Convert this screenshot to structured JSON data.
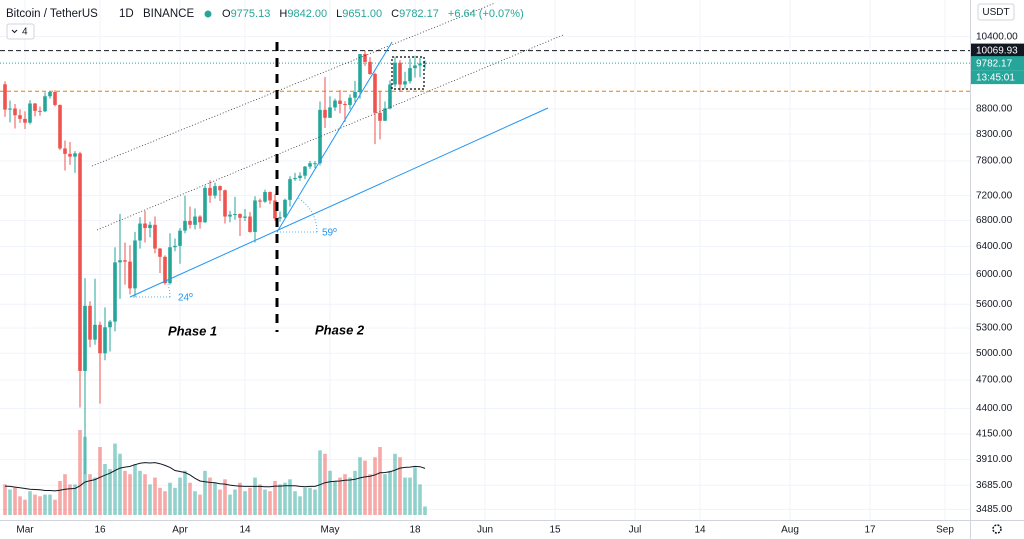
{
  "header": {
    "symbol": "Bitcoin / TetherUS",
    "interval": "1D",
    "exchange": "BINANCE",
    "ohlc": [
      {
        "key": "O",
        "value": "9775.13"
      },
      {
        "key": "H",
        "value": "9842.00"
      },
      {
        "key": "L",
        "value": "9651.00"
      },
      {
        "key": "C",
        "value": "9782.17"
      }
    ],
    "change": "+6.64 (+0.07%)",
    "indicator_count": 4,
    "currency": "USDT"
  },
  "annotations": {
    "phase_1": "Phase 1",
    "phase_2": "Phase 2",
    "angle_1": "24º",
    "angle_2": "59º"
  },
  "chart_data": {
    "type": "candlestick",
    "log_scale": true,
    "grid": true,
    "up_color": "#26a69a",
    "down_color": "#ef5350",
    "xlim": [
      "Feb 25",
      "Sep 6"
    ],
    "ylim": [
      3400,
      11320
    ],
    "xticks": [
      {
        "value": "Mar 1",
        "label": "Mar"
      },
      {
        "value": "Mar 16",
        "label": "16"
      },
      {
        "value": "Apr 1",
        "label": "Apr"
      },
      {
        "value": "Apr 14",
        "label": "14"
      },
      {
        "value": "May 1",
        "label": "May"
      },
      {
        "value": "May 18",
        "label": "18"
      },
      {
        "value": "Jun 1",
        "label": "Jun"
      },
      {
        "value": "Jun 15",
        "label": "15"
      },
      {
        "value": "Jul 1",
        "label": "Jul"
      },
      {
        "value": "Jul 14",
        "label": "14"
      },
      {
        "value": "Aug 1",
        "label": "Aug"
      },
      {
        "value": "Aug 17",
        "label": "17"
      },
      {
        "value": "Sep 1",
        "label": "Sep"
      }
    ],
    "yticks": [
      {
        "value": 10400,
        "label": "10400.00"
      },
      {
        "value": 8800,
        "label": "8800.00"
      },
      {
        "value": 8300,
        "label": "8300.00"
      },
      {
        "value": 7800,
        "label": "7800.00"
      },
      {
        "value": 7200,
        "label": "7200.00"
      },
      {
        "value": 6800,
        "label": "6800.00"
      },
      {
        "value": 6400,
        "label": "6400.00"
      },
      {
        "value": 6000,
        "label": "6000.00"
      },
      {
        "value": 5600,
        "label": "5600.00"
      },
      {
        "value": 5300,
        "label": "5300.00"
      },
      {
        "value": 5000,
        "label": "5000.00"
      },
      {
        "value": 4700,
        "label": "4700.00"
      },
      {
        "value": 4400,
        "label": "4400.00"
      },
      {
        "value": 4150,
        "label": "4150.00"
      },
      {
        "value": 3910,
        "label": "3910.00"
      },
      {
        "value": 3685,
        "label": "3685.00"
      },
      {
        "value": 3485,
        "label": "3485.00"
      }
    ],
    "x": [
      "Feb 26",
      "Feb 27",
      "Feb 28",
      "Feb 29",
      "Mar 1",
      "Mar 2",
      "Mar 3",
      "Mar 4",
      "Mar 5",
      "Mar 6",
      "Mar 7",
      "Mar 8",
      "Mar 9",
      "Mar 10",
      "Mar 11",
      "Mar 12",
      "Mar 13",
      "Mar 14",
      "Mar 15",
      "Mar 16",
      "Mar 17",
      "Mar 18",
      "Mar 19",
      "Mar 20",
      "Mar 21",
      "Mar 22",
      "Mar 23",
      "Mar 24",
      "Mar 25",
      "Mar 26",
      "Mar 27",
      "Mar 28",
      "Mar 29",
      "Mar 30",
      "Mar 31",
      "Apr 1",
      "Apr 2",
      "Apr 3",
      "Apr 4",
      "Apr 5",
      "Apr 6",
      "Apr 7",
      "Apr 8",
      "Apr 9",
      "Apr 10",
      "Apr 11",
      "Apr 12",
      "Apr 13",
      "Apr 14",
      "Apr 15",
      "Apr 16",
      "Apr 17",
      "Apr 18",
      "Apr 19",
      "Apr 20",
      "Apr 21",
      "Apr 22",
      "Apr 23",
      "Apr 24",
      "Apr 25",
      "Apr 26",
      "Apr 27",
      "Apr 28",
      "Apr 29",
      "Apr 30",
      "May 1",
      "May 2",
      "May 3",
      "May 4",
      "May 5",
      "May 6",
      "May 7",
      "May 8",
      "May 9",
      "May 10",
      "May 11",
      "May 12",
      "May 13",
      "May 14",
      "May 15",
      "May 16",
      "May 17",
      "May 18",
      "May 19",
      "May 20"
    ],
    "open": [
      9315,
      8785,
      8807,
      8672,
      8599,
      8523,
      8910,
      8760,
      8750,
      9060,
      9150,
      8880,
      8030,
      7930,
      7880,
      7940,
      4800,
      5580,
      5160,
      5340,
      5000,
      5310,
      5380,
      6170,
      6200,
      6180,
      5810,
      6490,
      6750,
      6680,
      6730,
      6370,
      6250,
      5880,
      6390,
      6410,
      6640,
      6790,
      6730,
      6860,
      6770,
      7330,
      7200,
      7360,
      7290,
      6860,
      6890,
      6900,
      6840,
      6860,
      6620,
      7120,
      7100,
      7260,
      7120,
      6830,
      6850,
      7130,
      7480,
      7500,
      7540,
      7700,
      7760,
      7760,
      8780,
      8620,
      8830,
      8970,
      8900,
      8880,
      9030,
      9150,
      9990,
      9810,
      9540,
      8720,
      8560,
      8810,
      9310,
      9790,
      9310,
      9380,
      9670,
      9730,
      9775.13
    ],
    "high": [
      9377,
      8970,
      8900,
      8790,
      8750,
      8980,
      8920,
      8845,
      9145,
      9165,
      9190,
      8890,
      8180,
      8150,
      7980,
      7970,
      5950,
      5640,
      5940,
      5380,
      5560,
      5400,
      6390,
      6900,
      6460,
      6420,
      6620,
      6850,
      6950,
      6780,
      6860,
      6380,
      6270,
      6600,
      6520,
      6680,
      7200,
      7020,
      6990,
      6880,
      7370,
      7460,
      7420,
      7370,
      7300,
      6950,
      7180,
      6910,
      6980,
      6930,
      7190,
      7150,
      7300,
      7270,
      7220,
      6940,
      7150,
      7530,
      7590,
      7600,
      7710,
      7800,
      7800,
      8950,
      9470,
      9060,
      9010,
      9190,
      8960,
      9100,
      9390,
      9990,
      10069.93,
      9920,
      9570,
      9170,
      8950,
      9400,
      9930,
      9850,
      9590,
      9890,
      9950,
      9900,
      9842
    ],
    "low": [
      8640,
      8530,
      8410,
      8520,
      8400,
      8490,
      8650,
      8660,
      8735,
      9010,
      8850,
      8000,
      7630,
      7730,
      7590,
      4410,
      3780,
      5070,
      5100,
      4450,
      4920,
      5020,
      5260,
      5670,
      5860,
      5730,
      5690,
      6370,
      6460,
      6540,
      6300,
      6020,
      5860,
      5860,
      6330,
      6150,
      6600,
      6670,
      6660,
      6670,
      6760,
      7080,
      7150,
      7110,
      6750,
      6770,
      6810,
      6560,
      6790,
      6610,
      6460,
      7000,
      7080,
      7060,
      6790,
      6780,
      6830,
      7020,
      7450,
      7450,
      7480,
      7660,
      7670,
      7720,
      8420,
      8620,
      8760,
      8710,
      8540,
      8790,
      8940,
      9010,
      9720,
      9520,
      8110,
      8200,
      8560,
      8790,
      9260,
      9150,
      9220,
      9330,
      9460,
      9470,
      9651
    ],
    "close": [
      8785,
      8807,
      8672,
      8599,
      8523,
      8910,
      8760,
      8750,
      9060,
      9150,
      8880,
      8030,
      7930,
      7880,
      7940,
      4800,
      5580,
      5160,
      5340,
      5000,
      5310,
      5380,
      6170,
      6200,
      6180,
      5810,
      6490,
      6750,
      6680,
      6730,
      6370,
      6250,
      5880,
      6390,
      6410,
      6640,
      6790,
      6730,
      6860,
      6770,
      7330,
      7200,
      7360,
      7290,
      6860,
      6890,
      6900,
      6840,
      6860,
      6620,
      7120,
      7100,
      7260,
      7120,
      6830,
      6850,
      7130,
      7480,
      7500,
      7540,
      7700,
      7760,
      7760,
      8780,
      8620,
      8830,
      8970,
      8900,
      8880,
      9030,
      9150,
      9990,
      9810,
      9540,
      8720,
      8560,
      8810,
      9310,
      9790,
      9310,
      9380,
      9670,
      9730,
      9775.13,
      9782.17
    ],
    "volume": [
      90,
      75,
      80,
      55,
      45,
      70,
      60,
      55,
      60,
      60,
      45,
      100,
      120,
      90,
      90,
      250,
      230,
      120,
      110,
      200,
      150,
      135,
      210,
      180,
      130,
      120,
      150,
      130,
      120,
      90,
      110,
      80,
      70,
      95,
      80,
      110,
      130,
      95,
      70,
      60,
      130,
      110,
      95,
      75,
      105,
      60,
      75,
      95,
      70,
      80,
      110,
      90,
      75,
      70,
      100,
      90,
      95,
      105,
      70,
      55,
      80,
      80,
      75,
      190,
      180,
      130,
      100,
      110,
      120,
      110,
      130,
      170,
      160,
      120,
      170,
      200,
      120,
      130,
      180,
      170,
      110,
      110,
      140,
      90,
      25
    ],
    "volume_ma": [
      85,
      84,
      82,
      80,
      78,
      76,
      75,
      74,
      72,
      72,
      71,
      73,
      76,
      77,
      78,
      86,
      97,
      101,
      104,
      111,
      117,
      123,
      131,
      138,
      141,
      143,
      148,
      152,
      154,
      153,
      154,
      151,
      146,
      140,
      131,
      128,
      125,
      118,
      108,
      100,
      98,
      96,
      95,
      92,
      91,
      88,
      86,
      85,
      84,
      84,
      84,
      84,
      83,
      83,
      85,
      85,
      86,
      86,
      86,
      84,
      83,
      84,
      84,
      89,
      95,
      98,
      99,
      100,
      102,
      103,
      105,
      109,
      112,
      114,
      118,
      124,
      125,
      127,
      132,
      138,
      140,
      141,
      143,
      142,
      137
    ],
    "volume_ma_color": "#131722",
    "alert_level": {
      "value": 9165,
      "color": "#f57c00"
    },
    "price_marks": [
      {
        "value": 10069.93,
        "color": "#131722"
      },
      {
        "value": 9782.17,
        "color": "#26a69a",
        "countdown": "13:45:01"
      }
    ]
  }
}
